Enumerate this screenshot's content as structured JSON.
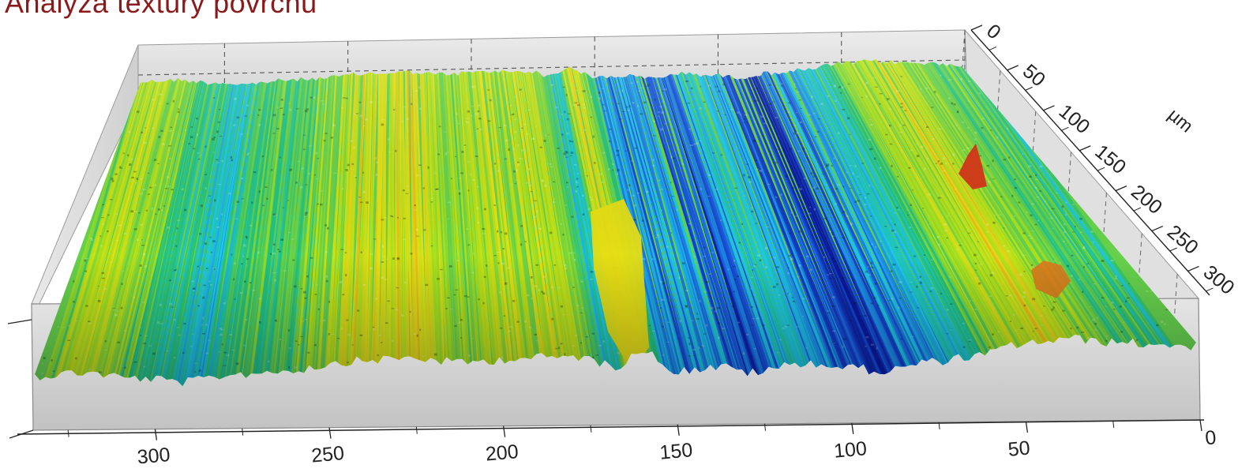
{
  "title": "Analyza textury povrchu",
  "chart_data": {
    "type": "surface",
    "title": "Analyza textury povrchu",
    "x_axis": {
      "label": "",
      "ticks": [
        0,
        50,
        100,
        150,
        200,
        250,
        300
      ],
      "range": [
        0,
        335
      ],
      "reversed": true
    },
    "y_axis": {
      "label": "µm",
      "ticks": [
        0,
        50,
        100,
        150,
        200,
        250,
        300
      ],
      "range": [
        0,
        330
      ]
    },
    "colormap": [
      "#0a1a9c",
      "#1a5be0",
      "#1ec8e8",
      "#23c27a",
      "#a8e01c",
      "#e6e015",
      "#e08a1c",
      "#c8281a"
    ],
    "grid": true,
    "box": true,
    "texture": "parallel grinding grooves running along the µm axis"
  }
}
